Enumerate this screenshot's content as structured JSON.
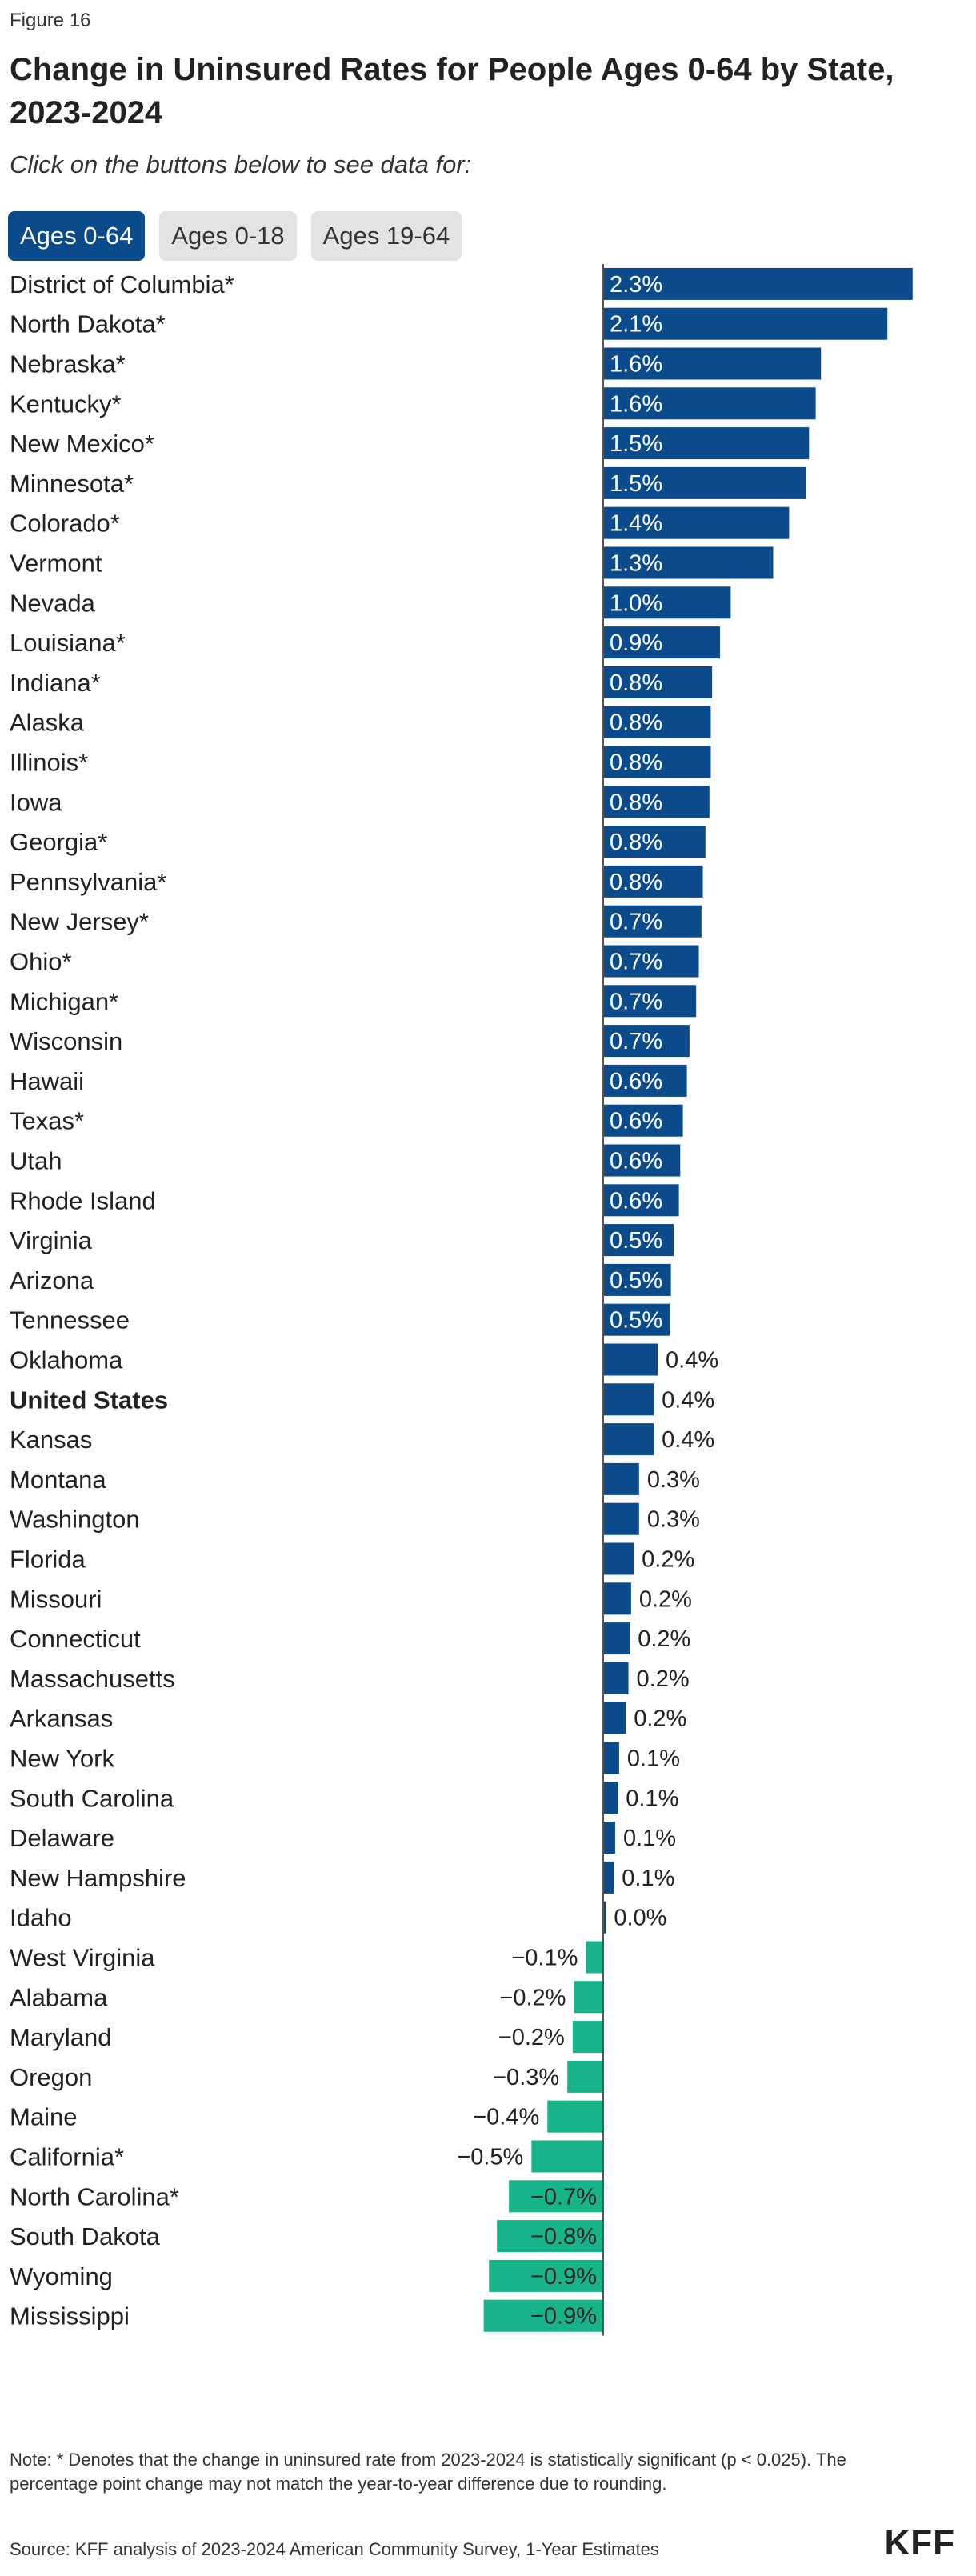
{
  "figure_label": "Figure 16",
  "title": "Change in Uninsured Rates for People Ages 0-64  by State, 2023-2024",
  "subtitle": "Click on the buttons below to see data for:",
  "buttons": [
    {
      "label": "Ages 0-64",
      "active": true
    },
    {
      "label": "Ages 0-18",
      "active": false
    },
    {
      "label": "Ages 19-64",
      "active": false
    }
  ],
  "colors": {
    "positive": "#0b4a8b",
    "negative": "#17b38a",
    "axis": "#555555",
    "button_active": "#0b4a8b",
    "button_inactive": "#e3e3e3"
  },
  "chart_data": {
    "type": "bar",
    "orientation": "horizontal",
    "unit": "%",
    "xlim": [
      -0.9,
      2.3
    ],
    "categories": [
      "District of Columbia*",
      "North Dakota*",
      "Nebraska*",
      "Kentucky*",
      "New Mexico*",
      "Minnesota*",
      "Colorado*",
      "Vermont",
      "Nevada",
      "Louisiana*",
      "Indiana*",
      "Alaska",
      "Illinois*",
      "Iowa",
      "Georgia*",
      "Pennsylvania*",
      "New Jersey*",
      "Ohio*",
      "Michigan*",
      "Wisconsin",
      "Hawaii",
      "Texas*",
      "Utah",
      "Rhode Island",
      "Virginia",
      "Arizona",
      "Tennessee",
      "Oklahoma",
      "United States",
      "Kansas",
      "Montana",
      "Washington",
      "Florida",
      "Missouri",
      "Connecticut",
      "Massachusetts",
      "Arkansas",
      "New York",
      "South Carolina",
      "Delaware",
      "New Hampshire",
      "Idaho",
      "West Virginia",
      "Alabama",
      "Maryland",
      "Oregon",
      "Maine",
      "California*",
      "North Carolina*",
      "South Dakota",
      "Wyoming",
      "Mississippi"
    ],
    "values": [
      2.33,
      2.14,
      1.64,
      1.6,
      1.55,
      1.53,
      1.4,
      1.28,
      0.96,
      0.88,
      0.82,
      0.81,
      0.81,
      0.8,
      0.77,
      0.75,
      0.74,
      0.72,
      0.7,
      0.65,
      0.63,
      0.6,
      0.58,
      0.57,
      0.53,
      0.51,
      0.5,
      0.41,
      0.38,
      0.38,
      0.27,
      0.27,
      0.23,
      0.21,
      0.2,
      0.19,
      0.17,
      0.12,
      0.11,
      0.09,
      0.08,
      0.02,
      -0.13,
      -0.22,
      -0.23,
      -0.27,
      -0.42,
      -0.54,
      -0.71,
      -0.8,
      -0.86,
      -0.9
    ],
    "labels": [
      "2.3%",
      "2.1%",
      "1.6%",
      "1.6%",
      "1.5%",
      "1.5%",
      "1.4%",
      "1.3%",
      "1.0%",
      "0.9%",
      "0.8%",
      "0.8%",
      "0.8%",
      "0.8%",
      "0.8%",
      "0.8%",
      "0.7%",
      "0.7%",
      "0.7%",
      "0.7%",
      "0.6%",
      "0.6%",
      "0.6%",
      "0.6%",
      "0.5%",
      "0.5%",
      "0.5%",
      "0.4%",
      "0.4%",
      "0.4%",
      "0.3%",
      "0.3%",
      "0.2%",
      "0.2%",
      "0.2%",
      "0.2%",
      "0.2%",
      "0.1%",
      "0.1%",
      "0.1%",
      "0.1%",
      "0.0%",
      "−0.1%",
      "−0.2%",
      "−0.2%",
      "−0.3%",
      "−0.4%",
      "−0.5%",
      "−0.7%",
      "−0.8%",
      "−0.9%",
      "−0.9%"
    ],
    "bold_categories": [
      "United States"
    ]
  },
  "note": "Note: * Denotes that the change in uninsured rate from 2023-2024 is statistically significant (p < 0.025). The percentage point change may not match the year-to-year difference due to rounding.",
  "source": "Source: KFF analysis of 2023-2024 American Community Survey, 1-Year Estimates",
  "logo_text": "KFF"
}
